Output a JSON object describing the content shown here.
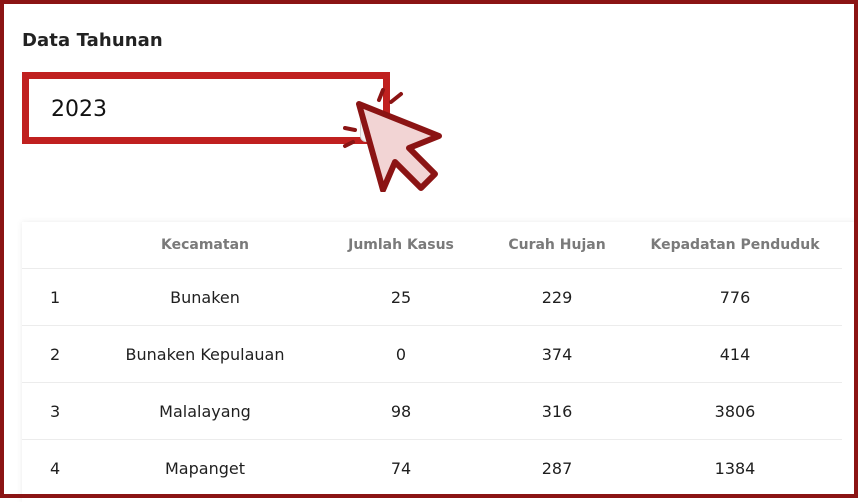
{
  "section": {
    "title": "Data Tahunan"
  },
  "year_select": {
    "value": "2023"
  },
  "table": {
    "headers": [
      "",
      "Kecamatan",
      "Jumlah Kasus",
      "Curah Hujan",
      "Kepadatan Penduduk"
    ],
    "rows": [
      {
        "no": "1",
        "kecamatan": "Bunaken",
        "jumlah_kasus": "25",
        "curah_hujan": "229",
        "kepadatan": "776"
      },
      {
        "no": "2",
        "kecamatan": "Bunaken Kepulauan",
        "jumlah_kasus": "0",
        "curah_hujan": "374",
        "kepadatan": "414"
      },
      {
        "no": "3",
        "kecamatan": "Malalayang",
        "jumlah_kasus": "98",
        "curah_hujan": "316",
        "kepadatan": "3806"
      },
      {
        "no": "4",
        "kecamatan": "Mapanget",
        "jumlah_kasus": "74",
        "curah_hujan": "287",
        "kepadatan": "1384"
      }
    ]
  },
  "colors": {
    "highlight": "#c0201f",
    "frame": "#8b1414",
    "cursor_fill": "#f2d4d4"
  }
}
